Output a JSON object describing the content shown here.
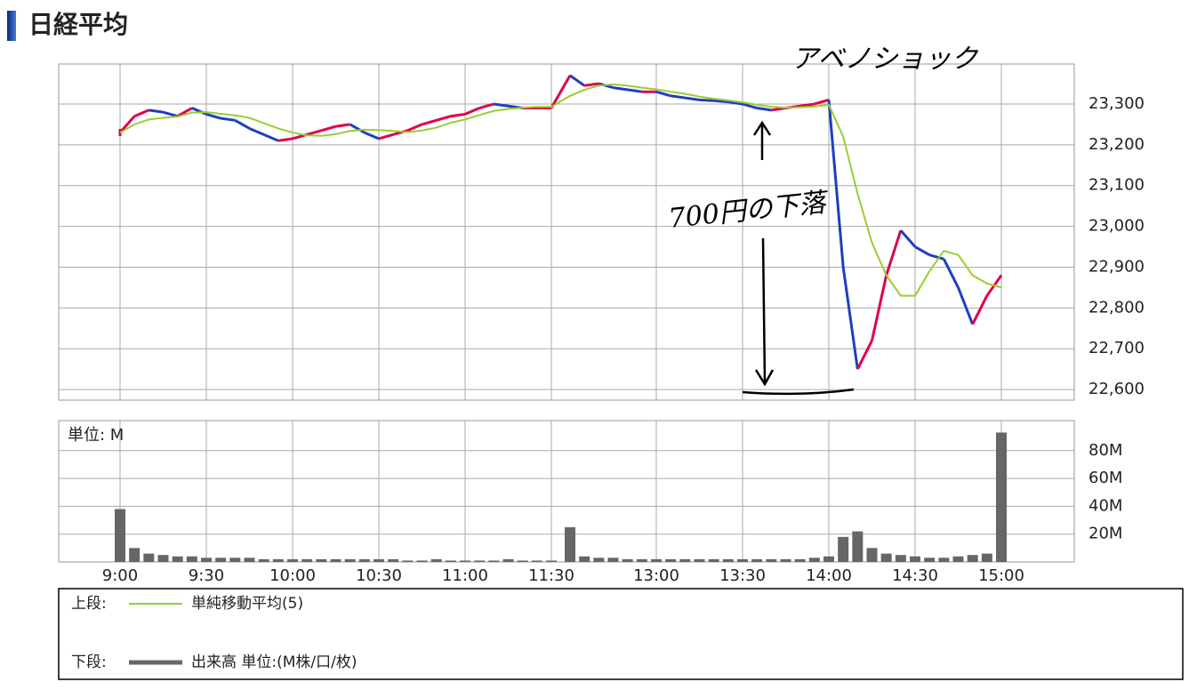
{
  "chart_data": [
    {
      "type": "line",
      "title": "日経平均",
      "x": [
        "9:00",
        "9:05",
        "9:10",
        "9:15",
        "9:20",
        "9:25",
        "9:30",
        "9:35",
        "9:40",
        "9:45",
        "9:50",
        "9:55",
        "10:00",
        "10:05",
        "10:10",
        "10:15",
        "10:20",
        "10:25",
        "10:30",
        "10:35",
        "10:40",
        "10:45",
        "10:50",
        "10:55",
        "11:00",
        "11:05",
        "11:10",
        "11:15",
        "11:20",
        "11:25",
        "11:30",
        "12:30",
        "12:35",
        "12:40",
        "12:45",
        "12:50",
        "12:55",
        "13:00",
        "13:05",
        "13:10",
        "13:15",
        "13:20",
        "13:25",
        "13:30",
        "13:35",
        "13:40",
        "13:45",
        "13:50",
        "13:55",
        "14:00",
        "14:05",
        "14:10",
        "14:15",
        "14:20",
        "14:25",
        "14:30",
        "14:35",
        "14:40",
        "14:45",
        "14:50",
        "14:55",
        "15:00"
      ],
      "series": [
        {
          "up_color": "#e0004a",
          "down_color": "#1f3fbf",
          "values": [
            23230,
            23270,
            23285,
            23280,
            23270,
            23290,
            23275,
            23265,
            23260,
            23240,
            23225,
            23210,
            23215,
            23225,
            23235,
            23245,
            23250,
            23230,
            23215,
            23225,
            23235,
            23250,
            23260,
            23270,
            23275,
            23290,
            23300,
            23295,
            23290,
            23290,
            23290,
            23370,
            23345,
            23350,
            23340,
            23335,
            23330,
            23330,
            23320,
            23315,
            23310,
            23308,
            23305,
            23300,
            23290,
            23285,
            23290,
            23295,
            23300,
            23310,
            22900,
            22650,
            22720,
            22880,
            22990,
            22950,
            22930,
            22920,
            22850,
            22760,
            22830,
            22880
          ]
        },
        {
          "name": "単純移動平均(5)",
          "color": "#9acd32",
          "values": [
            23230,
            23250,
            23262,
            23266,
            23269,
            23279,
            23280,
            23276,
            23272,
            23266,
            23253,
            23240,
            23230,
            23223,
            23222,
            23226,
            23234,
            23237,
            23236,
            23234,
            23231,
            23235,
            23242,
            23254,
            23262,
            23273,
            23283,
            23288,
            23291,
            23293,
            23293,
            23320,
            23335,
            23345,
            23348,
            23345,
            23340,
            23336,
            23330,
            23325,
            23318,
            23313,
            23309,
            23304,
            23298,
            23293,
            23291,
            23292,
            23294,
            23298,
            23220,
            23080,
            22960,
            22880,
            22830,
            22830,
            22890,
            22940,
            22930,
            22880,
            22860,
            22850
          ]
        }
      ],
      "legend_prefix": "上段:",
      "ylim": [
        22574,
        23398
      ],
      "yticks": [
        {
          "value": 22600,
          "label": "22,600"
        },
        {
          "value": 22700,
          "label": "22,700"
        },
        {
          "value": 22800,
          "label": "22,800"
        },
        {
          "value": 22900,
          "label": "22,900"
        },
        {
          "value": 23000,
          "label": "23,000"
        },
        {
          "value": 23100,
          "label": "23,100"
        },
        {
          "value": 23200,
          "label": "23,200"
        },
        {
          "value": 23300,
          "label": "23,300"
        }
      ],
      "grid": true,
      "annotations": [
        "アベノショック",
        "700円の下落"
      ]
    },
    {
      "type": "bar",
      "unit_label": "単位: M",
      "x": [
        "9:00",
        "9:05",
        "9:10",
        "9:15",
        "9:20",
        "9:25",
        "9:30",
        "9:35",
        "9:40",
        "9:45",
        "9:50",
        "9:55",
        "10:00",
        "10:05",
        "10:10",
        "10:15",
        "10:20",
        "10:25",
        "10:30",
        "10:35",
        "10:40",
        "10:45",
        "10:50",
        "10:55",
        "11:00",
        "11:05",
        "11:10",
        "11:15",
        "11:20",
        "11:25",
        "11:30",
        "12:30",
        "12:35",
        "12:40",
        "12:45",
        "12:50",
        "12:55",
        "13:00",
        "13:05",
        "13:10",
        "13:15",
        "13:20",
        "13:25",
        "13:30",
        "13:35",
        "13:40",
        "13:45",
        "13:50",
        "13:55",
        "14:00",
        "14:05",
        "14:10",
        "14:15",
        "14:20",
        "14:25",
        "14:30",
        "14:35",
        "14:40",
        "14:45",
        "14:50",
        "14:55",
        "15:00"
      ],
      "series": [
        {
          "name": "出来高 単位:(M株/口/枚)",
          "color": "#666666",
          "values": [
            38,
            10,
            6,
            5,
            4,
            4,
            3,
            3,
            3,
            3,
            2,
            2,
            2,
            2,
            2,
            2,
            2,
            2,
            2,
            2,
            1,
            1,
            2,
            1,
            1,
            1,
            1,
            2,
            1,
            1,
            1,
            25,
            4,
            3,
            3,
            2,
            2,
            2,
            2,
            2,
            2,
            2,
            2,
            2,
            2,
            2,
            2,
            2,
            3,
            4,
            18,
            22,
            10,
            6,
            5,
            4,
            3,
            3,
            4,
            5,
            6,
            93
          ]
        }
      ],
      "legend_prefix": "下段:",
      "ylim": [
        0,
        101.6
      ],
      "yticks": [
        {
          "value": 20,
          "label": "20M"
        },
        {
          "value": 40,
          "label": "40M"
        },
        {
          "value": 60,
          "label": "60M"
        },
        {
          "value": 80,
          "label": "80M"
        }
      ],
      "xticks": [
        "9:00",
        "9:30",
        "10:00",
        "10:30",
        "11:00",
        "11:30",
        "13:00",
        "13:30",
        "14:00",
        "14:30",
        "15:00"
      ],
      "grid": true
    }
  ]
}
